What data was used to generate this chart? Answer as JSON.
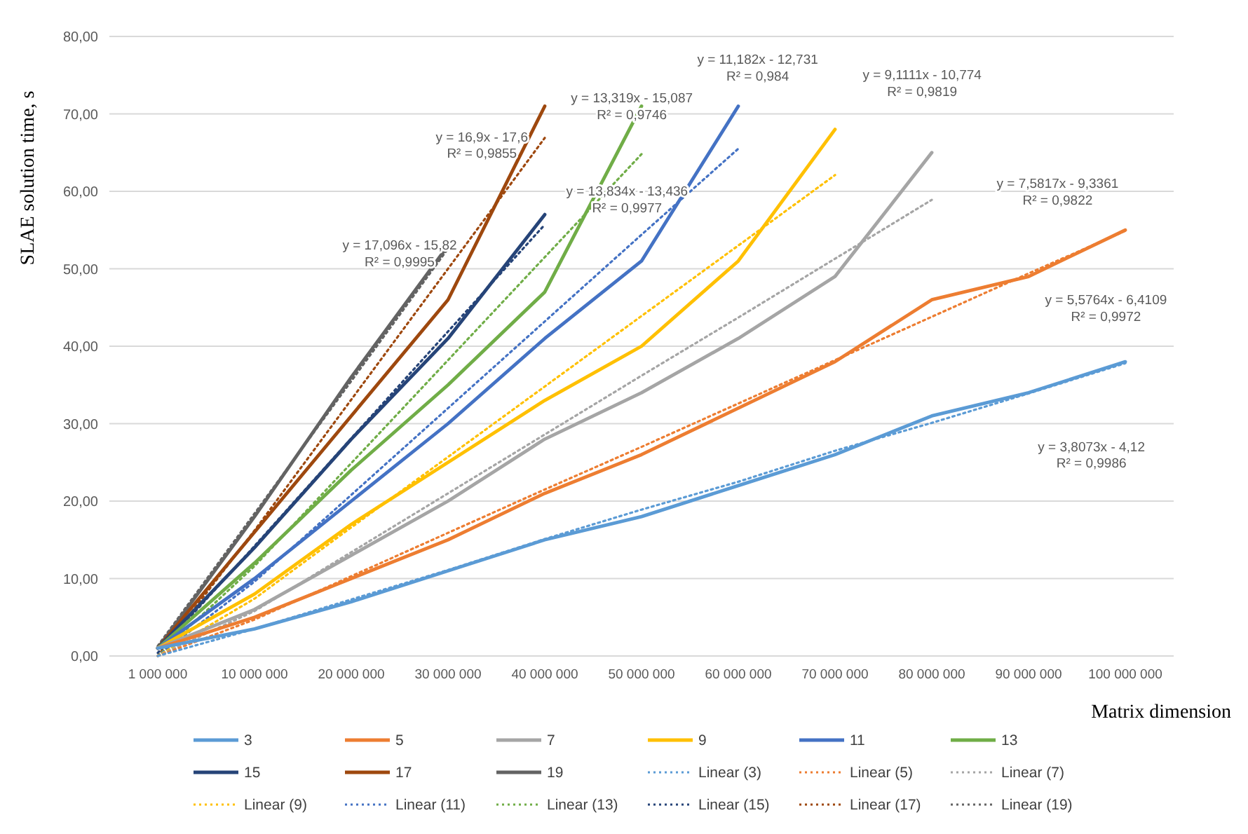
{
  "chart_data": {
    "type": "line",
    "xlabel": "Matrix dimension",
    "ylabel": "SLAE solution time, s",
    "categories": [
      "1 000 000",
      "10 000 000",
      "20 000 000",
      "30 000 000",
      "40 000 000",
      "50 000 000",
      "60 000 000",
      "70 000 000",
      "80 000 000",
      "90 000 000",
      "100 000 000"
    ],
    "ylim": [
      0,
      80
    ],
    "yticks": [
      {
        "value": 0,
        "label": "0,00"
      },
      {
        "value": 10,
        "label": "10,00"
      },
      {
        "value": 20,
        "label": "20,00"
      },
      {
        "value": 30,
        "label": "30,00"
      },
      {
        "value": 40,
        "label": "40,00"
      },
      {
        "value": 50,
        "label": "50,00"
      },
      {
        "value": 60,
        "label": "60,00"
      },
      {
        "value": 70,
        "label": "70,00"
      },
      {
        "value": 80,
        "label": "80,00"
      }
    ],
    "grid": "y",
    "legend": "bottom",
    "series": [
      {
        "name": "3",
        "color": "#5b9bd5",
        "values": [
          1,
          3.5,
          7,
          11,
          15,
          18,
          22,
          26,
          31,
          34,
          38
        ]
      },
      {
        "name": "5",
        "color": "#ed7d31",
        "values": [
          1,
          5,
          10,
          15,
          21,
          26,
          32,
          38,
          46,
          49,
          55
        ]
      },
      {
        "name": "7",
        "color": "#a5a5a5",
        "values": [
          1,
          6,
          13,
          20,
          28,
          34,
          41,
          49,
          65,
          null,
          null
        ]
      },
      {
        "name": "9",
        "color": "#ffc000",
        "values": [
          1,
          8,
          17,
          25,
          33,
          40,
          51,
          68,
          null,
          null,
          null
        ]
      },
      {
        "name": "11",
        "color": "#4472c4",
        "values": [
          1,
          10,
          20,
          30,
          41,
          51,
          71,
          null,
          null,
          null,
          null
        ]
      },
      {
        "name": "13",
        "color": "#70ad47",
        "values": [
          1,
          12,
          24,
          35,
          47,
          71,
          null,
          null,
          null,
          null,
          null
        ]
      },
      {
        "name": "15",
        "color": "#264478",
        "values": [
          1,
          14,
          28,
          41,
          57,
          null,
          null,
          null,
          null,
          null,
          null
        ]
      },
      {
        "name": "17",
        "color": "#9e480e",
        "values": [
          1,
          16,
          31,
          46,
          71,
          null,
          null,
          null,
          null,
          null,
          null
        ]
      },
      {
        "name": "19",
        "color": "#636363",
        "values": [
          1,
          18,
          36,
          53,
          null,
          null,
          null,
          null,
          null,
          null,
          null
        ]
      },
      {
        "name": "Linear (3)",
        "color": "#5b9bd5",
        "line_style": "dotted",
        "values": [
          0,
          3.5,
          7.3,
          11.1,
          15.1,
          18.9,
          22.5,
          26.5,
          30.1,
          33.9,
          37.8
        ]
      },
      {
        "name": "Linear (5)",
        "color": "#ed7d31",
        "line_style": "dotted",
        "values": [
          0,
          4.7,
          10.3,
          15.9,
          21.5,
          27,
          32.6,
          38.2,
          43.8,
          49.4,
          54.9
        ]
      },
      {
        "name": "Linear (7)",
        "color": "#a5a5a5",
        "line_style": "dotted",
        "values": [
          0,
          5.8,
          13.4,
          21,
          28.6,
          36.2,
          43.7,
          51.3,
          58.9,
          null,
          null
        ]
      },
      {
        "name": "Linear (9)",
        "color": "#ffc000",
        "line_style": "dotted",
        "values": [
          0,
          7.4,
          16.6,
          25.7,
          34.8,
          43.9,
          53,
          62.1,
          null,
          null,
          null
        ]
      },
      {
        "name": "Linear (11)",
        "color": "#4472c4",
        "line_style": "dotted",
        "values": [
          0,
          9.6,
          20.8,
          32,
          43.2,
          54.4,
          65.5,
          null,
          null,
          null,
          null
        ]
      },
      {
        "name": "Linear (13)",
        "color": "#70ad47",
        "line_style": "dotted",
        "values": [
          0,
          11.6,
          24.9,
          38.2,
          51.5,
          64.8,
          null,
          null,
          null,
          null,
          null
        ]
      },
      {
        "name": "Linear (15)",
        "color": "#264478",
        "line_style": "dotted",
        "values": [
          0.4,
          14.2,
          28.1,
          41.9,
          55.7,
          null,
          null,
          null,
          null,
          null,
          null
        ]
      },
      {
        "name": "Linear (17)",
        "color": "#9e480e",
        "line_style": "dotted",
        "values": [
          0,
          16.2,
          33.1,
          50,
          66.9,
          null,
          null,
          null,
          null,
          null,
          null
        ]
      },
      {
        "name": "Linear (19)",
        "color": "#636363",
        "line_style": "dotted",
        "values": [
          1.3,
          18.4,
          35.5,
          52.6,
          null,
          null,
          null,
          null,
          null,
          null,
          null
        ]
      }
    ],
    "annotations": [
      "y = 17,096x - 15,82\nR² = 0,9995",
      "y = 16,9x - 17,6\nR² = 0,9855",
      "y = 13,319x - 15,087\nR² = 0,9746",
      "y = 13,834x - 13,436\nR² = 0,9977",
      "y = 11,182x - 12,731\nR² = 0,984",
      "y = 9,1111x - 10,774\nR² = 0,9819",
      "y = 7,5817x - 9,3361\nR² = 0,9822",
      "y = 5,5764x - 6,4109\nR² = 0,9972",
      "y = 3,8073x - 4,12\nR² = 0,9986"
    ]
  }
}
